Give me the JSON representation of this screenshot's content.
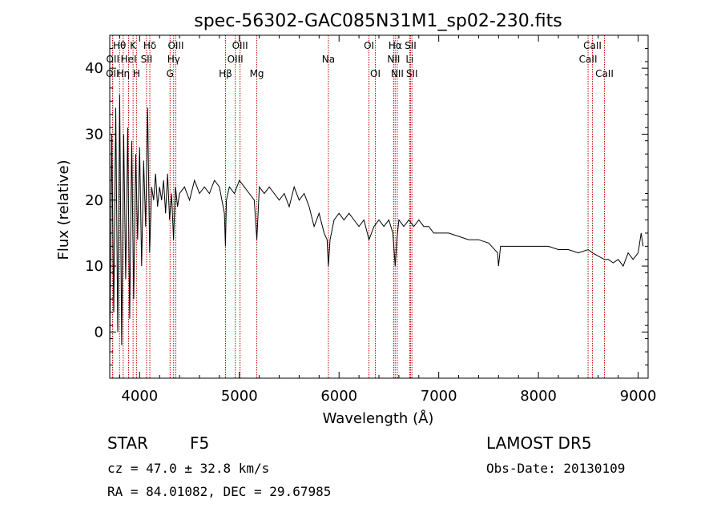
{
  "chart_data": {
    "type": "line",
    "title": "spec-56302-GAC085N31M1_sp02-230.fits",
    "xlabel": "Wavelength (Å)",
    "ylabel": "Flux (relative)",
    "xlim": [
      3700,
      9100
    ],
    "ylim": [
      -7,
      45
    ],
    "x_ticks": [
      4000,
      5000,
      6000,
      7000,
      8000,
      9000
    ],
    "y_ticks": [
      0,
      10,
      20,
      30,
      40
    ],
    "grid": false,
    "spectral_lines": [
      {
        "label": "OII",
        "wavelength": 3727,
        "row": 3
      },
      {
        "label": "Hθ",
        "wavelength": 3798,
        "row": 1
      },
      {
        "label": "OII",
        "wavelength": 3730,
        "row": 2
      },
      {
        "label": "Hη",
        "wavelength": 3835,
        "row": 3
      },
      {
        "label": "HeI",
        "wavelength": 3889,
        "row": 2
      },
      {
        "label": "K",
        "wavelength": 3934,
        "row": 1
      },
      {
        "label": "H",
        "wavelength": 3968,
        "row": 3
      },
      {
        "label": "SII",
        "wavelength": 4069,
        "row": 2
      },
      {
        "label": "Hδ",
        "wavelength": 4102,
        "row": 1
      },
      {
        "label": "G",
        "wavelength": 4305,
        "row": 3
      },
      {
        "label": "Hγ",
        "wavelength": 4341,
        "row": 2
      },
      {
        "label": "OIII",
        "wavelength": 4363,
        "row": 1
      },
      {
        "label": "Hβ",
        "wavelength": 4861,
        "row": 3
      },
      {
        "label": "OIII",
        "wavelength": 4959,
        "row": 2
      },
      {
        "label": "OIII",
        "wavelength": 5007,
        "row": 1
      },
      {
        "label": "Mg",
        "wavelength": 5175,
        "row": 3
      },
      {
        "label": "Na",
        "wavelength": 5893,
        "row": 2
      },
      {
        "label": "OI",
        "wavelength": 6300,
        "row": 1
      },
      {
        "label": "OI",
        "wavelength": 6364,
        "row": 3
      },
      {
        "label": "NII",
        "wavelength": 6548,
        "row": 2
      },
      {
        "label": "Hα",
        "wavelength": 6563,
        "row": 1
      },
      {
        "label": "NII",
        "wavelength": 6584,
        "row": 3
      },
      {
        "label": "Li",
        "wavelength": 6708,
        "row": 2
      },
      {
        "label": "SII",
        "wavelength": 6717,
        "row": 1
      },
      {
        "label": "SII",
        "wavelength": 6731,
        "row": 3
      },
      {
        "label": "CaII",
        "wavelength": 8498,
        "row": 2
      },
      {
        "label": "CaII",
        "wavelength": 8542,
        "row": 1
      },
      {
        "label": "CaII",
        "wavelength": 8662,
        "row": 3
      }
    ],
    "series": [
      {
        "x": [
          3700,
          3720,
          3740,
          3760,
          3780,
          3800,
          3820,
          3840,
          3860,
          3880,
          3900,
          3920,
          3940,
          3960,
          3980,
          4000,
          4020,
          4040,
          4060,
          4080,
          4100,
          4120,
          4140,
          4160,
          4180,
          4200,
          4220,
          4240,
          4260,
          4280,
          4300,
          4320,
          4340,
          4360,
          4380,
          4400,
          4450,
          4500,
          4550,
          4600,
          4650,
          4700,
          4750,
          4800,
          4850,
          4860,
          4870,
          4900,
          4950,
          5000,
          5050,
          5100,
          5150,
          5175,
          5200,
          5250,
          5300,
          5350,
          5400,
          5450,
          5500,
          5550,
          5600,
          5650,
          5700,
          5750,
          5800,
          5850,
          5880,
          5893,
          5910,
          5950,
          6000,
          6050,
          6100,
          6150,
          6200,
          6250,
          6300,
          6350,
          6400,
          6450,
          6500,
          6540,
          6563,
          6580,
          6600,
          6650,
          6700,
          6750,
          6800,
          6850,
          6900,
          6950,
          7000,
          7100,
          7200,
          7300,
          7400,
          7500,
          7590,
          7600,
          7620,
          7700,
          7800,
          7900,
          8000,
          8100,
          8200,
          8300,
          8400,
          8500,
          8542,
          8600,
          8662,
          8700,
          8750,
          8800,
          8850,
          8900,
          8950,
          9000,
          9030,
          9050
        ],
        "y": [
          -3,
          30,
          3,
          34,
          0,
          36,
          -2,
          30,
          8,
          31,
          2,
          29,
          5,
          27,
          14,
          28,
          10,
          26,
          16,
          34,
          12,
          22,
          20,
          24,
          19,
          22,
          20,
          23,
          18,
          24,
          17,
          21,
          14,
          22,
          19,
          21,
          22,
          20,
          23,
          21,
          22,
          21,
          23,
          22,
          18,
          13,
          20,
          22,
          21,
          23,
          22,
          21,
          20,
          14,
          22,
          21,
          22,
          21,
          20,
          21,
          19,
          22,
          20,
          21,
          19,
          16,
          18,
          15,
          14,
          10,
          14,
          17,
          18,
          17,
          18,
          17,
          16,
          17,
          14,
          16,
          17,
          16,
          17,
          15,
          10,
          14,
          17,
          16,
          17,
          16,
          17,
          16,
          16,
          15,
          15,
          15,
          14.5,
          14,
          14,
          13.5,
          12,
          10,
          13,
          13,
          13,
          13,
          13,
          13,
          12.5,
          12.5,
          12,
          12.5,
          12,
          11.5,
          11,
          11,
          10.5,
          11,
          10,
          12,
          11,
          12,
          15,
          13
        ]
      }
    ]
  },
  "footer": {
    "object_class": "STAR",
    "subclass": "F5",
    "redshift": "cz =  47.0 ± 32.8 km/s",
    "coords": "RA =  84.01082, DEC =  29.67985",
    "survey": "LAMOST DR5",
    "obs_date": "Obs-Date: 20130109"
  }
}
